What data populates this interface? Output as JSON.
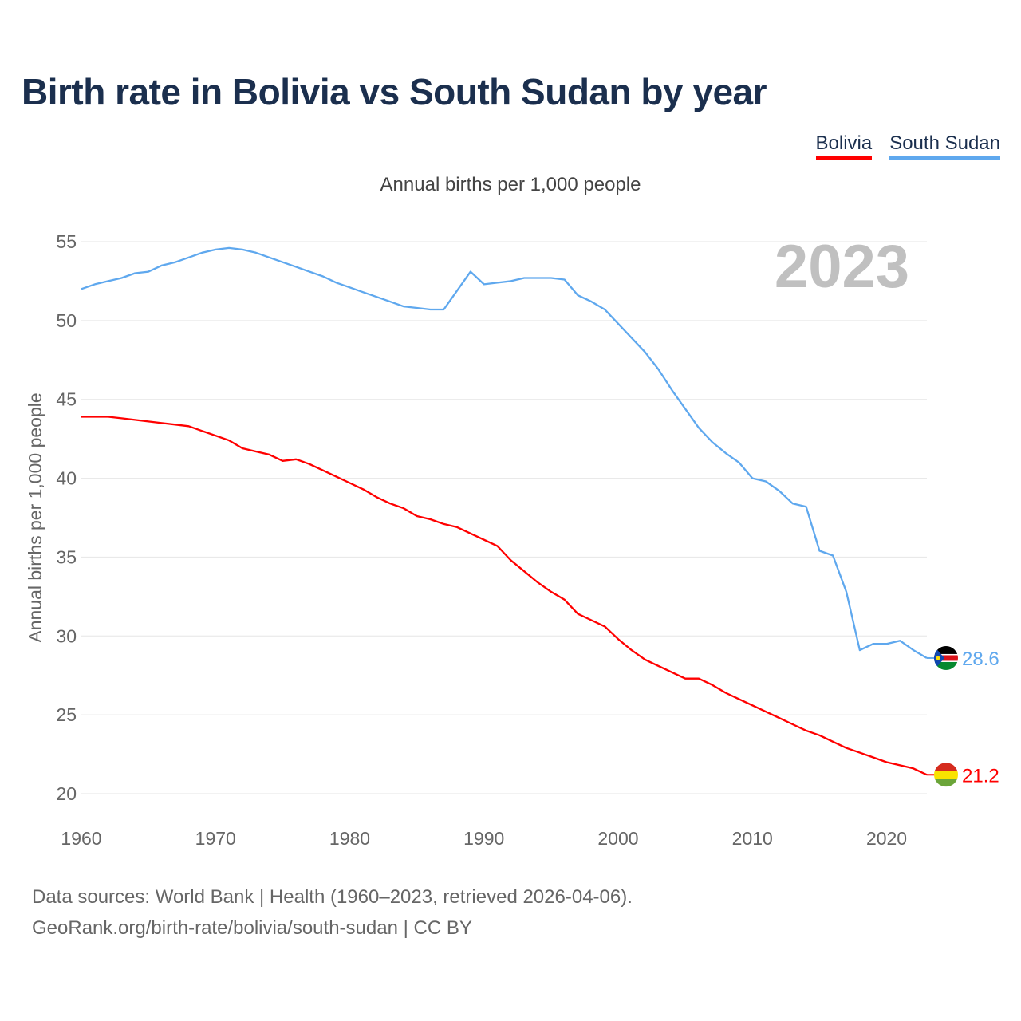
{
  "chart_data": {
    "type": "line",
    "title": "Birth rate in Bolivia vs South Sudan by year",
    "subtitle": "Annual births per 1,000 people",
    "ylabel": "Annual births per 1,000 people",
    "xlabel": "",
    "xlim": [
      1960,
      2023
    ],
    "ylim": [
      20,
      55
    ],
    "xticks": [
      1960,
      1970,
      1980,
      1990,
      2000,
      2010,
      2020
    ],
    "yticks": [
      20,
      25,
      30,
      35,
      40,
      45,
      50,
      55
    ],
    "grid": true,
    "legend_position": "top-right",
    "year_label": "2023",
    "x": [
      1960,
      1961,
      1962,
      1963,
      1964,
      1965,
      1966,
      1967,
      1968,
      1969,
      1970,
      1971,
      1972,
      1973,
      1974,
      1975,
      1976,
      1977,
      1978,
      1979,
      1980,
      1981,
      1982,
      1983,
      1984,
      1985,
      1986,
      1987,
      1988,
      1989,
      1990,
      1991,
      1992,
      1993,
      1994,
      1995,
      1996,
      1997,
      1998,
      1999,
      2000,
      2001,
      2002,
      2003,
      2004,
      2005,
      2006,
      2007,
      2008,
      2009,
      2010,
      2011,
      2012,
      2013,
      2014,
      2015,
      2016,
      2017,
      2018,
      2019,
      2020,
      2021,
      2022,
      2023
    ],
    "series": [
      {
        "name": "Bolivia",
        "color": "#ff0000",
        "end_label": "21.2",
        "values": [
          43.9,
          43.9,
          43.9,
          43.8,
          43.7,
          43.6,
          43.5,
          43.4,
          43.3,
          43.0,
          42.7,
          42.4,
          41.9,
          41.7,
          41.5,
          41.1,
          41.2,
          40.9,
          40.5,
          40.1,
          39.7,
          39.3,
          38.8,
          38.4,
          38.1,
          37.6,
          37.4,
          37.1,
          36.9,
          36.5,
          36.1,
          35.7,
          34.8,
          34.1,
          33.4,
          32.8,
          32.3,
          31.4,
          31.0,
          30.6,
          29.8,
          29.1,
          28.5,
          28.1,
          27.7,
          27.3,
          27.3,
          26.9,
          26.4,
          26.0,
          25.6,
          25.2,
          24.8,
          24.4,
          24.0,
          23.7,
          23.3,
          22.9,
          22.6,
          22.3,
          22.0,
          21.8,
          21.6,
          21.2
        ]
      },
      {
        "name": "South Sudan",
        "color": "#5fa8ee",
        "end_label": "28.6",
        "values": [
          52.0,
          52.3,
          52.5,
          52.7,
          53.0,
          53.1,
          53.5,
          53.7,
          54.0,
          54.3,
          54.5,
          54.6,
          54.5,
          54.3,
          54.0,
          53.7,
          53.4,
          53.1,
          52.8,
          52.4,
          52.1,
          51.8,
          51.5,
          51.2,
          50.9,
          50.8,
          50.7,
          50.7,
          51.9,
          53.1,
          52.3,
          52.4,
          52.5,
          52.7,
          52.7,
          52.7,
          52.6,
          51.6,
          51.2,
          50.7,
          49.8,
          48.9,
          48.0,
          46.9,
          45.6,
          44.4,
          43.2,
          42.3,
          41.6,
          41.0,
          40.0,
          39.8,
          39.2,
          38.4,
          38.2,
          35.4,
          35.1,
          32.8,
          29.1,
          29.5,
          29.5,
          29.7,
          29.1,
          28.6
        ]
      }
    ]
  },
  "footer": {
    "line1": "Data sources: World Bank | Health (1960–2023, retrieved 2026-04-06).",
    "line2": "GeoRank.org/birth-rate/bolivia/south-sudan | CC BY"
  }
}
